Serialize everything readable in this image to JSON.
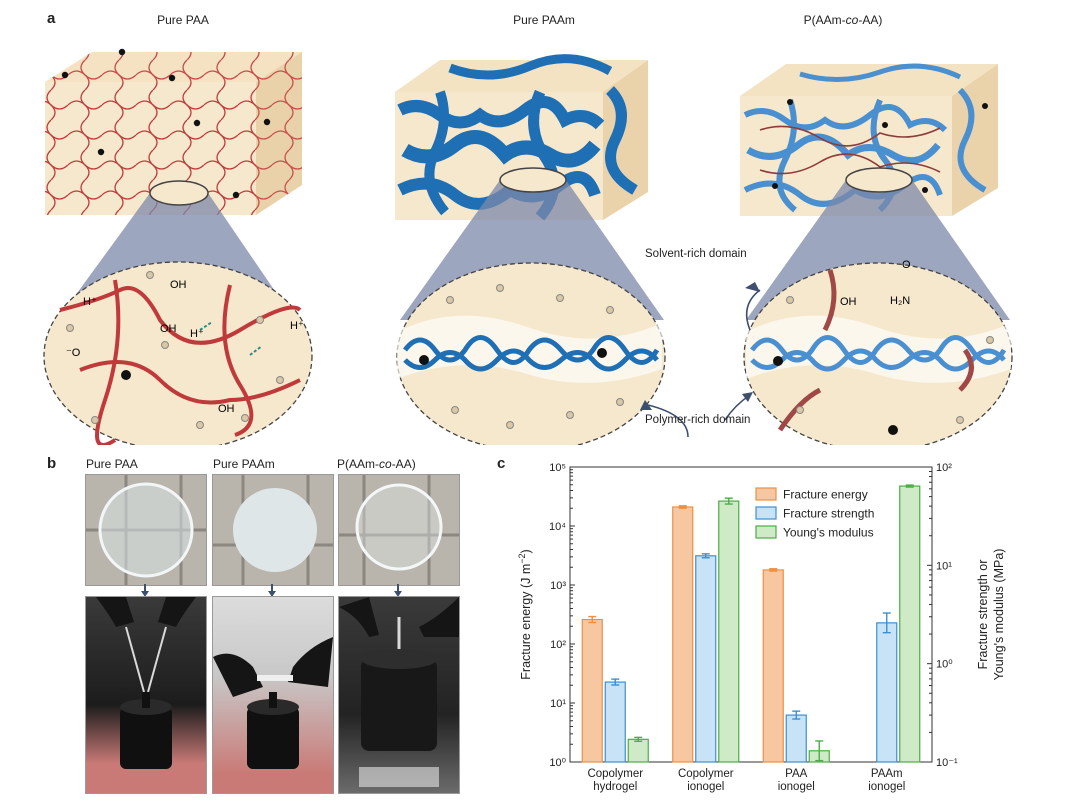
{
  "panel_a": {
    "letter": "a",
    "titles": {
      "paa": "Pure PAA",
      "paam": "Pure PAAm",
      "copolymer_prefix": "P(AAm-",
      "copolymer_italic": "co",
      "copolymer_suffix": "-AA)"
    },
    "labels": {
      "solvent_rich": "Solvent-rich domain",
      "polymer_rich": "Polymer-rich domain"
    },
    "chem": {
      "h_plus": "H⁺",
      "oh": "OH",
      "o": "O",
      "o_minus": "⁻O",
      "h": "H",
      "h2n": "H₂N"
    }
  },
  "panel_b": {
    "letter": "b",
    "titles": {
      "paa": "Pure PAA",
      "paam": "Pure PAAm",
      "copolymer_prefix": "P(AAm-",
      "copolymer_italic": "co",
      "copolymer_suffix": "-AA)"
    }
  },
  "panel_c": {
    "letter": "c"
  },
  "chart_data": {
    "type": "bar",
    "categories": [
      [
        "Copolymer",
        "hydrogel"
      ],
      [
        "Copolymer",
        "ionogel"
      ],
      [
        "PAA",
        "ionogel"
      ],
      [
        "PAAm",
        "ionogel"
      ]
    ],
    "series": [
      {
        "name": "Fracture energy",
        "axis": "left",
        "values": [
          260,
          21000,
          1800,
          null
        ],
        "err": [
          0.05,
          0.02,
          0.02,
          null
        ],
        "color": "#f6c7a1",
        "edge": "#ee8f43"
      },
      {
        "name": "Fracture strength",
        "axis": "right",
        "values": [
          0.65,
          12.5,
          0.3,
          2.6
        ],
        "err": [
          0.03,
          0.02,
          0.04,
          0.1
        ],
        "color": "#c9e3f6",
        "edge": "#3d8fd1"
      },
      {
        "name": "Young's modulus",
        "axis": "right",
        "values": [
          0.17,
          45,
          0.13,
          64
        ],
        "err": [
          0.02,
          0.03,
          0.1,
          0.01
        ],
        "color": "#cfeac6",
        "edge": "#4cae45"
      }
    ],
    "y_left": {
      "label_main": "Fracture energy (J m",
      "label_sup": "−2",
      "label_end": ")",
      "scale": "log",
      "ylim": [
        1,
        100000
      ],
      "ticks": [
        "10⁰",
        "10¹",
        "10²",
        "10³",
        "10⁴",
        "10⁵"
      ]
    },
    "y_right": {
      "label_line1": "Fracture strength or",
      "label_line2": "Young's modulus (MPa)",
      "scale": "log",
      "ylim": [
        0.1,
        100
      ],
      "ticks": [
        "10⁻¹",
        "10⁰",
        "10¹",
        "10²"
      ]
    },
    "legend": "top-right",
    "grid": false
  }
}
